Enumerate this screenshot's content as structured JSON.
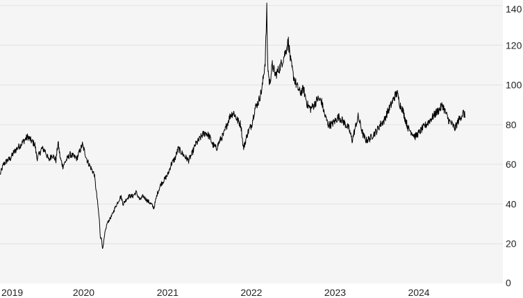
{
  "chart_data": {
    "type": "line",
    "title": "",
    "xlabel": "",
    "ylabel": "",
    "y_axis_position": "right",
    "grid": "horizontal",
    "xlim": [
      "2018-12-31",
      "2024-12-31"
    ],
    "ylim": [
      0,
      140
    ],
    "x_tick_labels": [
      "2019",
      "2020",
      "2021",
      "2022",
      "2023",
      "2024"
    ],
    "x_tick_dates": [
      "2019-01-01",
      "2020-01-01",
      "2021-01-01",
      "2022-01-01",
      "2023-01-01",
      "2024-01-01"
    ],
    "y_ticks": [
      0,
      20,
      40,
      60,
      80,
      100,
      120,
      140
    ],
    "colors": {
      "background": "#f5f5f5",
      "line": "#000000",
      "grid": "#e2e2e2"
    },
    "series": [
      {
        "points": [
          [
            "2019-01-01",
            55
          ],
          [
            "2019-01-15",
            60
          ],
          [
            "2019-02-01",
            62
          ],
          [
            "2019-02-15",
            63
          ],
          [
            "2019-03-01",
            66
          ],
          [
            "2019-03-15",
            68
          ],
          [
            "2019-04-01",
            70
          ],
          [
            "2019-04-15",
            72
          ],
          [
            "2019-05-01",
            74
          ],
          [
            "2019-05-15",
            72
          ],
          [
            "2019-06-01",
            70
          ],
          [
            "2019-06-10",
            63
          ],
          [
            "2019-06-20",
            65
          ],
          [
            "2019-07-01",
            68
          ],
          [
            "2019-07-15",
            67
          ],
          [
            "2019-08-01",
            62
          ],
          [
            "2019-08-15",
            65
          ],
          [
            "2019-09-01",
            62
          ],
          [
            "2019-09-10",
            71
          ],
          [
            "2019-09-20",
            63
          ],
          [
            "2019-10-01",
            59
          ],
          [
            "2019-10-15",
            62
          ],
          [
            "2019-11-01",
            65
          ],
          [
            "2019-11-15",
            64
          ],
          [
            "2019-12-01",
            63
          ],
          [
            "2019-12-15",
            67
          ],
          [
            "2019-12-25",
            70
          ],
          [
            "2020-01-05",
            66
          ],
          [
            "2020-01-15",
            62
          ],
          [
            "2020-02-01",
            58
          ],
          [
            "2020-02-15",
            55
          ],
          [
            "2020-02-25",
            45
          ],
          [
            "2020-03-01",
            40
          ],
          [
            "2020-03-08",
            32
          ],
          [
            "2020-03-12",
            24
          ],
          [
            "2020-03-18",
            22
          ],
          [
            "2020-03-23",
            17
          ],
          [
            "2020-04-01",
            25
          ],
          [
            "2020-04-10",
            30
          ],
          [
            "2020-04-20",
            32
          ],
          [
            "2020-05-01",
            34
          ],
          [
            "2020-05-15",
            38
          ],
          [
            "2020-06-01",
            42
          ],
          [
            "2020-06-10",
            44
          ],
          [
            "2020-06-20",
            40
          ],
          [
            "2020-07-01",
            42
          ],
          [
            "2020-07-15",
            44
          ],
          [
            "2020-08-01",
            44
          ],
          [
            "2020-08-15",
            46
          ],
          [
            "2020-09-01",
            42
          ],
          [
            "2020-09-15",
            44
          ],
          [
            "2020-10-01",
            42
          ],
          [
            "2020-10-20",
            40
          ],
          [
            "2020-11-01",
            38
          ],
          [
            "2020-11-15",
            45
          ],
          [
            "2020-12-01",
            50
          ],
          [
            "2020-12-15",
            52
          ],
          [
            "2021-01-01",
            55
          ],
          [
            "2021-01-15",
            60
          ],
          [
            "2021-02-01",
            63
          ],
          [
            "2021-02-15",
            68
          ],
          [
            "2021-03-01",
            66
          ],
          [
            "2021-03-15",
            64
          ],
          [
            "2021-04-01",
            62
          ],
          [
            "2021-04-15",
            65
          ],
          [
            "2021-05-01",
            70
          ],
          [
            "2021-05-15",
            72
          ],
          [
            "2021-06-01",
            75
          ],
          [
            "2021-06-15",
            76
          ],
          [
            "2021-07-01",
            74
          ],
          [
            "2021-07-15",
            70
          ],
          [
            "2021-08-01",
            68
          ],
          [
            "2021-08-15",
            72
          ],
          [
            "2021-09-01",
            75
          ],
          [
            "2021-09-15",
            80
          ],
          [
            "2021-10-01",
            85
          ],
          [
            "2021-10-15",
            86
          ],
          [
            "2021-11-01",
            82
          ],
          [
            "2021-11-15",
            80
          ],
          [
            "2021-11-26",
            68
          ],
          [
            "2021-12-01",
            70
          ],
          [
            "2021-12-15",
            76
          ],
          [
            "2022-01-01",
            80
          ],
          [
            "2022-01-15",
            88
          ],
          [
            "2022-02-01",
            92
          ],
          [
            "2022-02-15",
            98
          ],
          [
            "2022-03-01",
            112
          ],
          [
            "2022-03-08",
            138
          ],
          [
            "2022-03-12",
            110
          ],
          [
            "2022-03-20",
            100
          ],
          [
            "2022-04-01",
            110
          ],
          [
            "2022-04-15",
            105
          ],
          [
            "2022-05-01",
            108
          ],
          [
            "2022-05-15",
            112
          ],
          [
            "2022-06-01",
            118
          ],
          [
            "2022-06-10",
            122
          ],
          [
            "2022-06-20",
            112
          ],
          [
            "2022-07-01",
            105
          ],
          [
            "2022-07-15",
            100
          ],
          [
            "2022-08-01",
            96
          ],
          [
            "2022-08-15",
            98
          ],
          [
            "2022-09-01",
            90
          ],
          [
            "2022-09-15",
            88
          ],
          [
            "2022-10-01",
            90
          ],
          [
            "2022-10-15",
            93
          ],
          [
            "2022-11-01",
            92
          ],
          [
            "2022-11-15",
            85
          ],
          [
            "2022-12-01",
            80
          ],
          [
            "2022-12-15",
            80
          ],
          [
            "2023-01-01",
            82
          ],
          [
            "2023-01-15",
            84
          ],
          [
            "2023-02-01",
            82
          ],
          [
            "2023-02-15",
            80
          ],
          [
            "2023-03-01",
            78
          ],
          [
            "2023-03-15",
            72
          ],
          [
            "2023-04-01",
            80
          ],
          [
            "2023-04-10",
            84
          ],
          [
            "2023-04-20",
            80
          ],
          [
            "2023-05-01",
            75
          ],
          [
            "2023-05-15",
            72
          ],
          [
            "2023-06-01",
            73
          ],
          [
            "2023-06-15",
            75
          ],
          [
            "2023-07-01",
            77
          ],
          [
            "2023-07-15",
            80
          ],
          [
            "2023-08-01",
            82
          ],
          [
            "2023-08-15",
            86
          ],
          [
            "2023-09-01",
            90
          ],
          [
            "2023-09-15",
            94
          ],
          [
            "2023-09-27",
            96
          ],
          [
            "2023-10-10",
            90
          ],
          [
            "2023-10-20",
            88
          ],
          [
            "2023-11-01",
            83
          ],
          [
            "2023-11-15",
            78
          ],
          [
            "2023-12-01",
            76
          ],
          [
            "2023-12-15",
            74
          ],
          [
            "2024-01-01",
            76
          ],
          [
            "2024-01-15",
            78
          ],
          [
            "2024-02-01",
            80
          ],
          [
            "2024-02-15",
            82
          ],
          [
            "2024-03-01",
            84
          ],
          [
            "2024-03-15",
            86
          ],
          [
            "2024-04-01",
            88
          ],
          [
            "2024-04-12",
            90
          ],
          [
            "2024-04-25",
            86
          ],
          [
            "2024-05-10",
            82
          ],
          [
            "2024-05-25",
            80
          ],
          [
            "2024-06-05",
            78
          ],
          [
            "2024-06-20",
            82
          ],
          [
            "2024-07-01",
            84
          ],
          [
            "2024-07-12",
            86
          ],
          [
            "2024-07-20",
            84
          ]
        ]
      }
    ]
  }
}
